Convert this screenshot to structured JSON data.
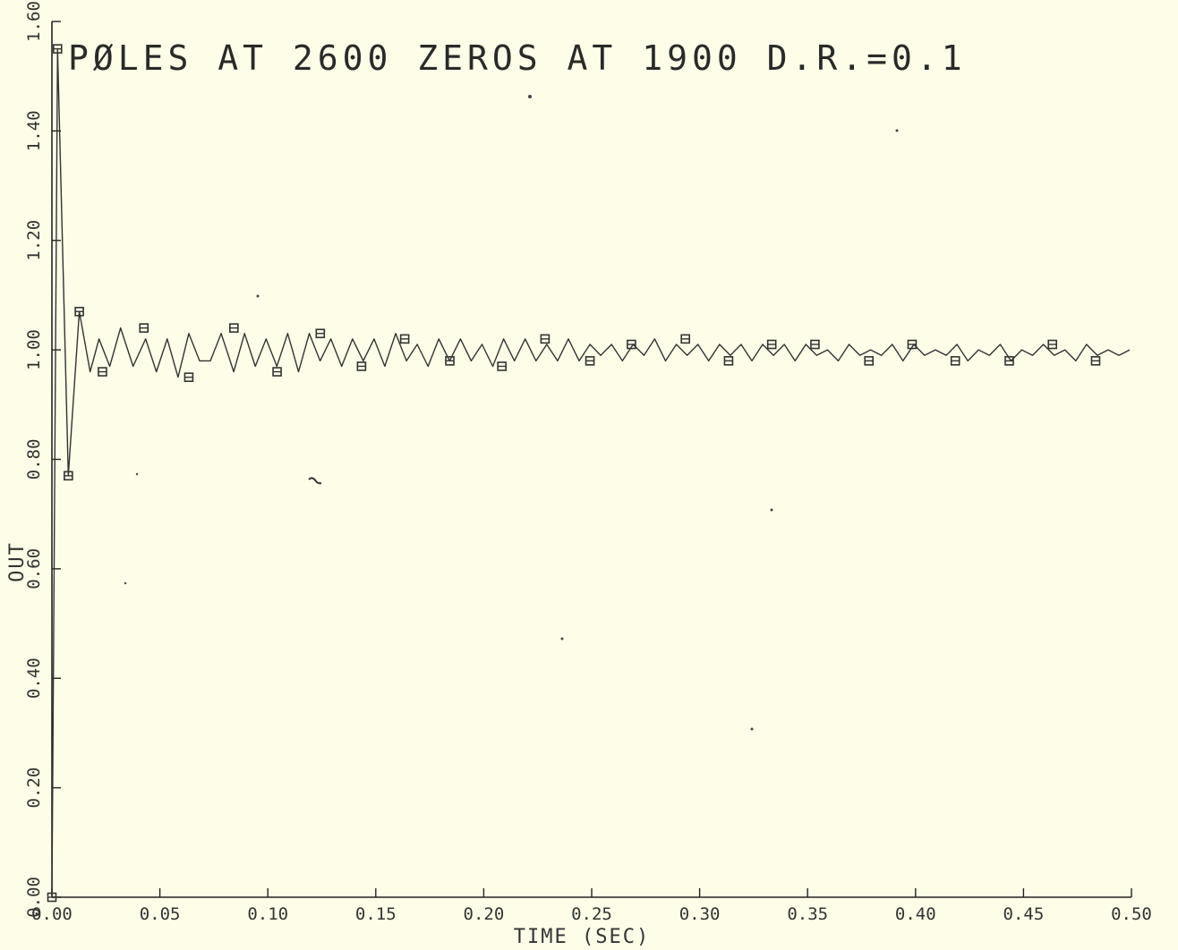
{
  "chart_data": {
    "type": "line",
    "title": "PØLES AT 2600 ZEROS AT 1900 D.R.=0.1",
    "xlabel": "TIME (SEC)",
    "ylabel": "OUT",
    "xlim": [
      0.0,
      0.5
    ],
    "ylim": [
      0.0,
      1.6
    ],
    "grid": false,
    "x_ticks": [
      "0.00",
      "0.05",
      "0.10",
      "0.15",
      "0.20",
      "0.25",
      "0.30",
      "0.35",
      "0.40",
      "0.45",
      "0.50"
    ],
    "y_ticks": [
      "0.00",
      "0.20",
      "0.40",
      "0.60",
      "0.80",
      "1.00",
      "1.20",
      "1.40",
      "1.60"
    ],
    "series": [
      {
        "line_x": [
          0.0,
          0.0026,
          0.0076,
          0.0127,
          0.0177,
          0.0218,
          0.0268,
          0.0318,
          0.0376,
          0.0434,
          0.0484,
          0.0534,
          0.0584,
          0.0634,
          0.0684,
          0.0734,
          0.0784,
          0.0842,
          0.0892,
          0.0942,
          0.0992,
          0.1042,
          0.1092,
          0.1142,
          0.1192,
          0.1242,
          0.1292,
          0.1342,
          0.1392,
          0.1442,
          0.1492,
          0.1542,
          0.1592,
          0.1642,
          0.1692,
          0.1742,
          0.1792,
          0.1842,
          0.1892,
          0.1942,
          0.1992,
          0.2042,
          0.2092,
          0.2142,
          0.2192,
          0.2242,
          0.2292,
          0.2342,
          0.2392,
          0.2442,
          0.2492,
          0.2542,
          0.2592,
          0.2642,
          0.2692,
          0.2742,
          0.2792,
          0.2842,
          0.2892,
          0.2942,
          0.2992,
          0.3042,
          0.3092,
          0.3142,
          0.3192,
          0.3242,
          0.3292,
          0.3342,
          0.3392,
          0.3442,
          0.3492,
          0.3542,
          0.3592,
          0.3642,
          0.3692,
          0.3742,
          0.3792,
          0.3842,
          0.3892,
          0.3942,
          0.3992,
          0.4042,
          0.4092,
          0.4142,
          0.4192,
          0.4242,
          0.4292,
          0.4342,
          0.4392,
          0.4442,
          0.4492,
          0.4542,
          0.4592,
          0.4642,
          0.4692,
          0.4742,
          0.4792,
          0.4842,
          0.4892,
          0.4942,
          0.4992
        ],
        "line_y": [
          0.0,
          1.55,
          0.77,
          1.07,
          0.96,
          1.02,
          0.97,
          1.04,
          0.97,
          1.02,
          0.96,
          1.02,
          0.95,
          1.03,
          0.98,
          0.98,
          1.03,
          0.96,
          1.03,
          0.97,
          1.02,
          0.97,
          1.03,
          0.96,
          1.03,
          0.98,
          1.02,
          0.97,
          1.02,
          0.98,
          1.02,
          0.97,
          1.03,
          0.98,
          1.01,
          0.97,
          1.02,
          0.98,
          1.02,
          0.98,
          1.01,
          0.97,
          1.02,
          0.98,
          1.02,
          0.98,
          1.01,
          0.98,
          1.02,
          0.98,
          1.01,
          0.99,
          1.01,
          0.98,
          1.01,
          0.99,
          1.02,
          0.98,
          1.01,
          0.99,
          1.01,
          0.98,
          1.01,
          0.99,
          1.01,
          0.98,
          1.01,
          0.99,
          1.01,
          0.98,
          1.01,
          0.99,
          1.0,
          0.98,
          1.01,
          0.99,
          1.0,
          0.99,
          1.01,
          0.98,
          1.01,
          0.99,
          1.0,
          0.99,
          1.01,
          0.98,
          1.0,
          0.99,
          1.01,
          0.98,
          1.0,
          0.99,
          1.01,
          0.99,
          1.0,
          0.98,
          1.01,
          0.99,
          1.0,
          0.99,
          1.0
        ],
        "marker": "square",
        "marker_x": [
          0.0,
          0.0026,
          0.0076,
          0.0127,
          0.0234,
          0.0426,
          0.0634,
          0.0843,
          0.1043,
          0.1243,
          0.1434,
          0.1634,
          0.1843,
          0.2084,
          0.2284,
          0.2492,
          0.2684,
          0.2934,
          0.3134,
          0.3334,
          0.3534,
          0.3784,
          0.3984,
          0.4184,
          0.4434,
          0.4634,
          0.4834
        ],
        "marker_y": [
          0.0,
          1.55,
          0.77,
          1.07,
          0.96,
          1.04,
          0.95,
          1.04,
          0.96,
          1.03,
          0.97,
          1.02,
          0.98,
          0.97,
          1.02,
          0.98,
          1.01,
          1.02,
          0.98,
          1.01,
          1.01,
          0.98,
          1.01,
          0.98,
          0.98,
          1.01,
          0.98
        ]
      }
    ]
  }
}
